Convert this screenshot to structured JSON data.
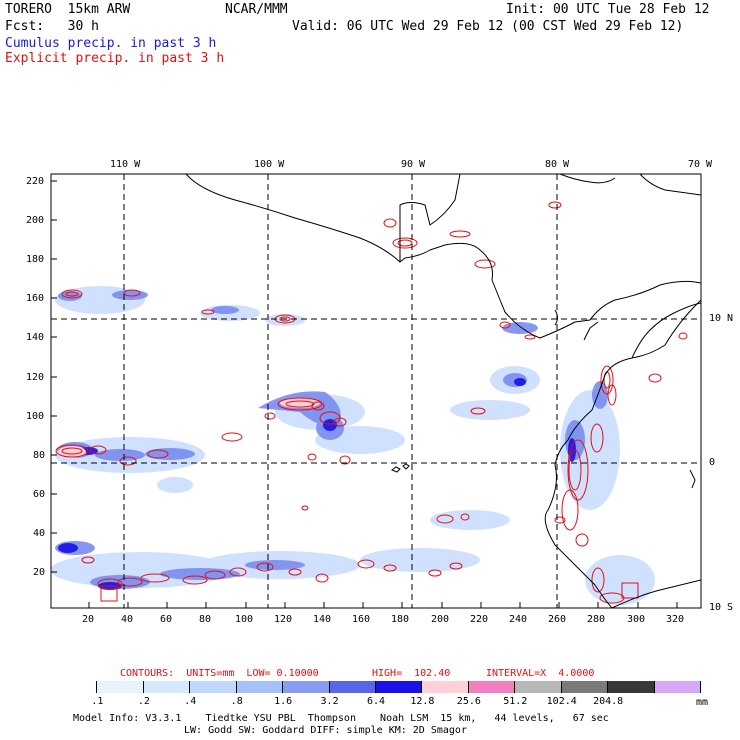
{
  "header": {
    "model": "TORERO  15km ARW",
    "org": "NCAR/MMM",
    "init": "Init: 00 UTC Tue 28 Feb 12",
    "fcst": "Fcst:   30 h",
    "valid": "Valid: 06 UTC Wed 29 Feb 12 (00 CST Wed 29 Feb 12)",
    "legend_cumulus": "Cumulus precip. in past 3 h",
    "legend_explicit": "Explicit precip. in past 3 h"
  },
  "colors": {
    "cumulus_text": "#1a1ad0",
    "explicit_text": "#e01010",
    "contour": "#e01010"
  },
  "map": {
    "top_lon_labels": [
      "110 W",
      "100 W",
      "90 W",
      "80 W",
      "70 W"
    ],
    "right_lat_labels": [
      "10 N",
      "0",
      "10 S"
    ],
    "y_ticks": [
      "220",
      "200",
      "180",
      "160",
      "140",
      "120",
      "100",
      "80",
      "60",
      "40",
      "20"
    ],
    "x_ticks": [
      "20",
      "40",
      "60",
      "80",
      "100",
      "120",
      "140",
      "160",
      "180",
      "200",
      "220",
      "240",
      "260",
      "280",
      "300",
      "320"
    ]
  },
  "contours_line": {
    "prefix": "CONTOURS:  UNITS=mm  LOW= 0.10000",
    "high": "HIGH=  102.40",
    "interval": "INTERVAL=X  4.0000"
  },
  "colorbar": {
    "colors": [
      "#ffffff",
      "#eaf2ff",
      "#d8e8ff",
      "#c0d8ff",
      "#a4c2f8",
      "#8a9cf0",
      "#5a66e8",
      "#1a10e8",
      "#ffd0d8",
      "#f080c0",
      "#b8b8b8",
      "#7a7a7a",
      "#383838",
      "#d8a8f8"
    ],
    "labels": [
      ".1",
      ".2",
      ".4",
      ".8",
      "1.6",
      "3.2",
      "6.4",
      "12.8",
      "25.6",
      "51.2",
      "102.4",
      "204.8"
    ],
    "unit": "mm"
  },
  "footer": {
    "line1": "Model Info: V3.3.1    Tiedtke YSU PBL  Thompson    Noah LSM  15 km,   44 levels,   67 sec",
    "line2": "LW: Godd SW: Goddard DIFF: simple KM: 2D Smagor"
  }
}
